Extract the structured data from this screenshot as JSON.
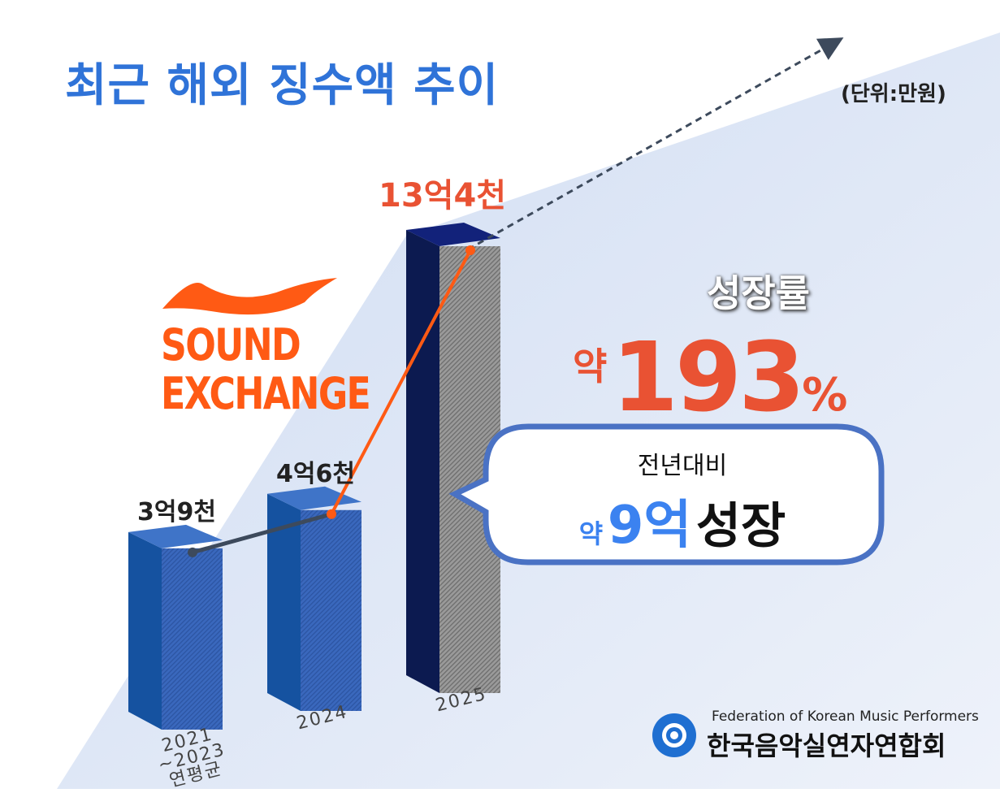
{
  "title": "최근 해외 징수액 추이",
  "unit": "(단위:만원)",
  "logo": {
    "line1": "SOUND",
    "line2": "EXCHANGE",
    "color": "#ff5a14"
  },
  "growth": {
    "label": "성장률",
    "prefix": "약",
    "value": "193",
    "suffix": "%"
  },
  "bubble": {
    "line1": "전년대비",
    "prefix": "약",
    "amount": "9억",
    "suffix": "성장"
  },
  "org": {
    "en": "Federation of Korean Music Performers",
    "ko": "한국음악실연자연합회"
  },
  "chart_data": {
    "type": "bar",
    "categories": [
      "2021~2023 연평균",
      "2024",
      "2025"
    ],
    "values": [
      39000,
      46000,
      134000
    ],
    "data_labels": [
      "3억9천",
      "4억6천",
      "13억4천"
    ],
    "unit": "만원",
    "colors": {
      "bar": "#1d5bb0",
      "bar_highlight": "#0c1a50",
      "trend_line": "#ff5a14",
      "baseline_line": "#3d4a5c"
    }
  }
}
